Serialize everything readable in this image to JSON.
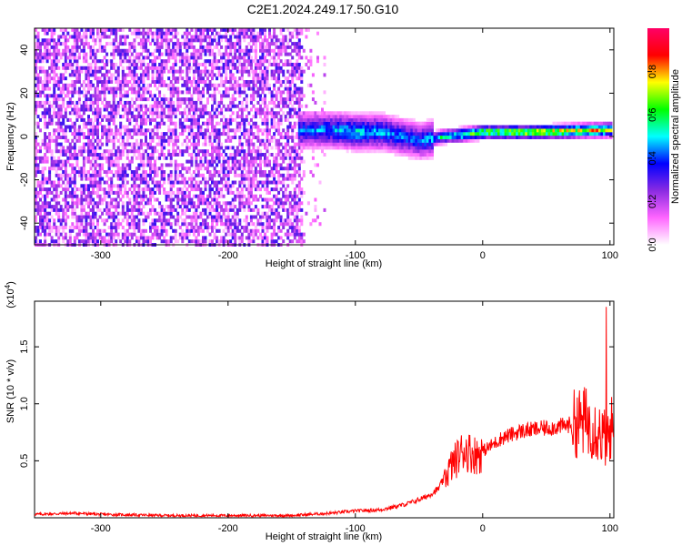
{
  "page": {
    "title": "C2E1.2024.249.17.50.G10"
  },
  "chart_data": [
    {
      "type": "heatmap",
      "title": "C2E1.2024.249.17.50.G10",
      "xlabel": "Height of straight line (km)",
      "ylabel": "Frequency (Hz)",
      "xlim": [
        -352,
        103
      ],
      "ylim": [
        -50,
        50
      ],
      "xticks": [
        -300,
        -200,
        -100,
        0,
        100
      ],
      "yticks": [
        -40,
        -20,
        0,
        20,
        40
      ],
      "colorbar": {
        "label": "Normalized spectral amplitude",
        "range": [
          0,
          1
        ],
        "ticks": [
          "0.0",
          "0.2",
          "0.4",
          "0.6",
          "0.8"
        ],
        "colormap": [
          "#ffffff",
          "#ff66ff",
          "#8a2be2",
          "#0000ff",
          "#00ffff",
          "#00ff00",
          "#ffff00",
          "#ff0000",
          "#ff0066"
        ]
      },
      "features": {
        "noise_region_end_km": -143,
        "sparse_region_end_km": -125,
        "line_segments": [
          {
            "x": -145,
            "freq": 3,
            "amplitude": 0.45
          },
          {
            "x": -120,
            "freq": 3,
            "amplitude": 0.5
          },
          {
            "x": -100,
            "freq": 2,
            "amplitude": 0.55
          },
          {
            "x": -80,
            "freq": 2,
            "amplitude": 0.5
          },
          {
            "x": -50,
            "freq": -2,
            "amplitude": 0.45
          },
          {
            "x": -30,
            "freq": 0,
            "amplitude": 0.6
          },
          {
            "x": 0,
            "freq": 2,
            "amplitude": 0.75
          },
          {
            "x": 40,
            "freq": 2,
            "amplitude": 0.85
          },
          {
            "x": 100,
            "freq": 3,
            "amplitude": 0.8
          }
        ]
      }
    },
    {
      "type": "line",
      "xlabel": "Height of straight line (km)",
      "ylabel": "SNR (10 * v/v)",
      "yscale_note": "(x10",
      "yscale_exp": "4",
      "xlim": [
        -352,
        103
      ],
      "ylim": [
        0,
        1.9
      ],
      "xticks": [
        -300,
        -200,
        -100,
        0,
        100
      ],
      "yticks": [
        "0.5",
        "1.0",
        "1.5"
      ],
      "line_color": "#ff0000",
      "series": [
        {
          "x": [
            -352,
            -320,
            -300,
            -250,
            -200,
            -150,
            -120,
            -100,
            -80,
            -60,
            -45,
            -35,
            -25,
            -15,
            -5,
            5,
            15,
            30,
            45,
            60,
            70,
            80,
            88,
            92,
            95,
            98,
            100,
            103
          ],
          "y": [
            0.03,
            0.04,
            0.03,
            0.02,
            0.02,
            0.02,
            0.04,
            0.06,
            0.07,
            0.12,
            0.18,
            0.25,
            0.45,
            0.6,
            0.55,
            0.62,
            0.7,
            0.76,
            0.78,
            0.8,
            0.82,
            0.85,
            0.8,
            0.75,
            0.7,
            0.72,
            0.78,
            0.8
          ]
        }
      ]
    }
  ]
}
